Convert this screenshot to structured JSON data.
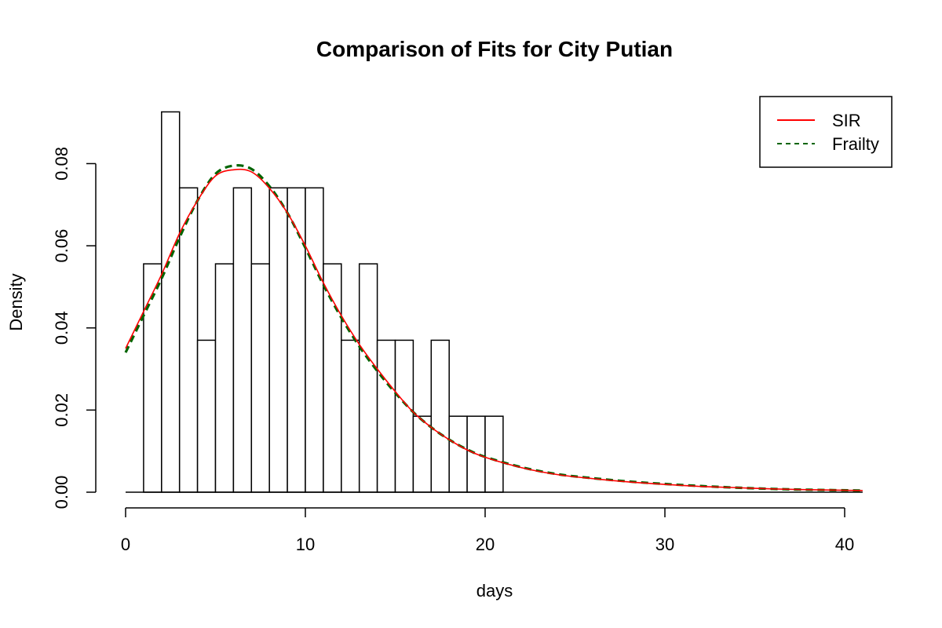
{
  "colors": {
    "sir": "#ff0000",
    "frailty": "#006400"
  },
  "chart_data": {
    "type": "bar",
    "title": "Comparison of Fits for City Putian",
    "xlabel": "days",
    "ylabel": "Density",
    "xlim": [
      0,
      41
    ],
    "ylim": [
      0,
      0.093
    ],
    "x_ticks": [
      0,
      10,
      20,
      30,
      40
    ],
    "x_tick_labels": [
      "0",
      "10",
      "20",
      "30",
      "40"
    ],
    "y_ticks": [
      0,
      0.02,
      0.04,
      0.06,
      0.08
    ],
    "y_tick_labels": [
      "0.00",
      "0.02",
      "0.04",
      "0.06",
      "0.08"
    ],
    "legend_position": "top-right",
    "histogram": {
      "bin_edges": [
        0,
        1,
        2,
        3,
        4,
        5,
        6,
        7,
        8,
        9,
        10,
        11,
        12,
        13,
        14,
        15,
        16,
        17,
        18,
        19,
        20,
        21,
        22,
        23,
        24,
        25,
        26,
        27,
        28,
        29,
        30,
        31,
        32,
        33,
        34,
        35,
        36,
        37,
        38,
        39,
        40,
        41
      ],
      "densities": [
        0,
        0.0556,
        0.0926,
        0.0741,
        0.037,
        0.0556,
        0.0741,
        0.0556,
        0.0741,
        0.0741,
        0.0741,
        0.0556,
        0.037,
        0.0556,
        0.037,
        0.037,
        0.0185,
        0.037,
        0.0185,
        0.0185,
        0.0185,
        0,
        0,
        0,
        0,
        0,
        0,
        0,
        0,
        0,
        0,
        0,
        0,
        0,
        0,
        0,
        0,
        0,
        0,
        0,
        0
      ]
    },
    "series": [
      {
        "name": "SIR",
        "line_style": "solid",
        "x": [
          0,
          1,
          2,
          3,
          4,
          5,
          6,
          7,
          8,
          9,
          10,
          11,
          12,
          13,
          14,
          15,
          16,
          17,
          18,
          19,
          20,
          22,
          24,
          26,
          28,
          30,
          32,
          34,
          36,
          38,
          41
        ],
        "y": [
          0.035,
          0.044,
          0.053,
          0.063,
          0.071,
          0.077,
          0.0785,
          0.078,
          0.074,
          0.068,
          0.06,
          0.051,
          0.043,
          0.036,
          0.03,
          0.0245,
          0.0195,
          0.0158,
          0.0128,
          0.0103,
          0.0085,
          0.006,
          0.0043,
          0.0033,
          0.0025,
          0.0019,
          0.0014,
          0.0011,
          0.0008,
          0.0006,
          0.0004
        ]
      },
      {
        "name": "Frailty",
        "line_style": "dashed",
        "x": [
          0,
          1,
          2,
          3,
          4,
          5,
          6,
          7,
          8,
          9,
          10,
          11,
          12,
          13,
          14,
          15,
          16,
          17,
          18,
          19,
          20,
          22,
          24,
          26,
          28,
          30,
          32,
          34,
          36,
          38,
          41
        ],
        "y": [
          0.034,
          0.043,
          0.052,
          0.062,
          0.071,
          0.0775,
          0.0795,
          0.0787,
          0.0745,
          0.068,
          0.0595,
          0.0505,
          0.0425,
          0.0355,
          0.0295,
          0.0242,
          0.0195,
          0.0158,
          0.0128,
          0.0104,
          0.0086,
          0.0061,
          0.0044,
          0.0034,
          0.0026,
          0.002,
          0.0015,
          0.0011,
          0.0008,
          0.0006,
          0.0004
        ]
      }
    ]
  }
}
